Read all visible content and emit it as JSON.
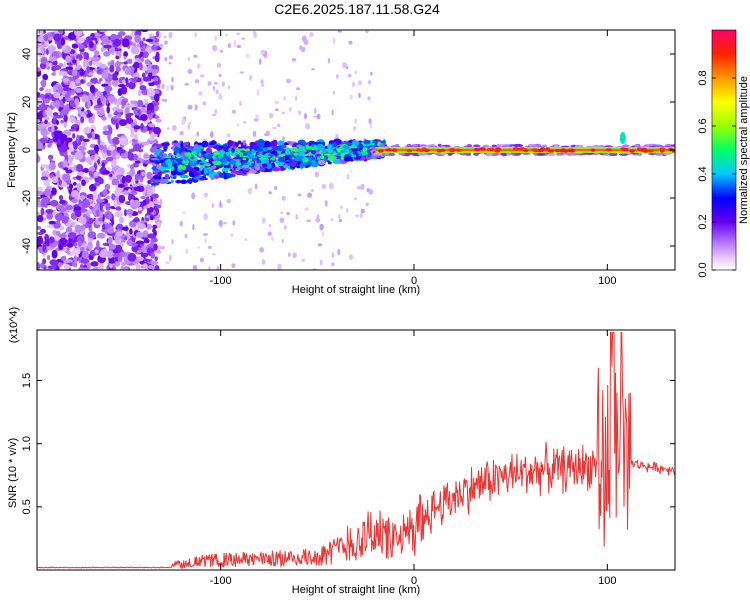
{
  "title": "C2E6.2025.187.11.58.G24",
  "chart_data": [
    {
      "type": "heatmap",
      "xlabel": "Height of straight line (km)",
      "ylabel": "Frequency (Hz)",
      "xlim": [
        -195,
        135
      ],
      "ylim": [
        -50,
        50
      ],
      "xticks": [
        -100,
        0,
        100
      ],
      "yticks": [
        40,
        20,
        0,
        -20,
        -40
      ],
      "colorbar": {
        "label": "Normalized spectral amplitude",
        "range": [
          0,
          1
        ],
        "ticks": [
          0.0,
          0.2,
          0.4,
          0.6,
          0.8
        ]
      },
      "grid": false
    },
    {
      "type": "line",
      "xlabel": "Height of straight line (km)",
      "ylabel": "SNR (10 * v/v)",
      "y_multiplier": "(x10^4)",
      "xlim": [
        -195,
        135
      ],
      "ylim": [
        0,
        1.9
      ],
      "xticks": [
        -100,
        0,
        100
      ],
      "yticks": [
        0.5,
        1.0,
        1.5
      ],
      "color": "#ee3333",
      "grid": false,
      "series": [
        {
          "x": [
            -195,
            -130,
            -125,
            -110,
            -100,
            -80,
            -60,
            -50,
            -40,
            -35,
            -30,
            -25,
            -20,
            -15,
            -10,
            -5,
            0,
            5,
            10,
            20,
            30,
            40,
            50,
            60,
            70,
            80,
            85,
            90,
            95,
            100,
            103,
            105,
            107,
            109,
            112,
            120,
            130,
            135
          ],
          "values": [
            0.02,
            0.02,
            0.05,
            0.08,
            0.09,
            0.1,
            0.11,
            0.12,
            0.18,
            0.25,
            0.25,
            0.3,
            0.38,
            0.3,
            0.25,
            0.3,
            0.38,
            0.42,
            0.48,
            0.58,
            0.65,
            0.72,
            0.75,
            0.78,
            0.8,
            0.8,
            0.82,
            0.82,
            0.85,
            0.8,
            1.5,
            0.7,
            1.8,
            0.6,
            0.85,
            0.82,
            0.8,
            0.8
          ]
        }
      ]
    }
  ]
}
